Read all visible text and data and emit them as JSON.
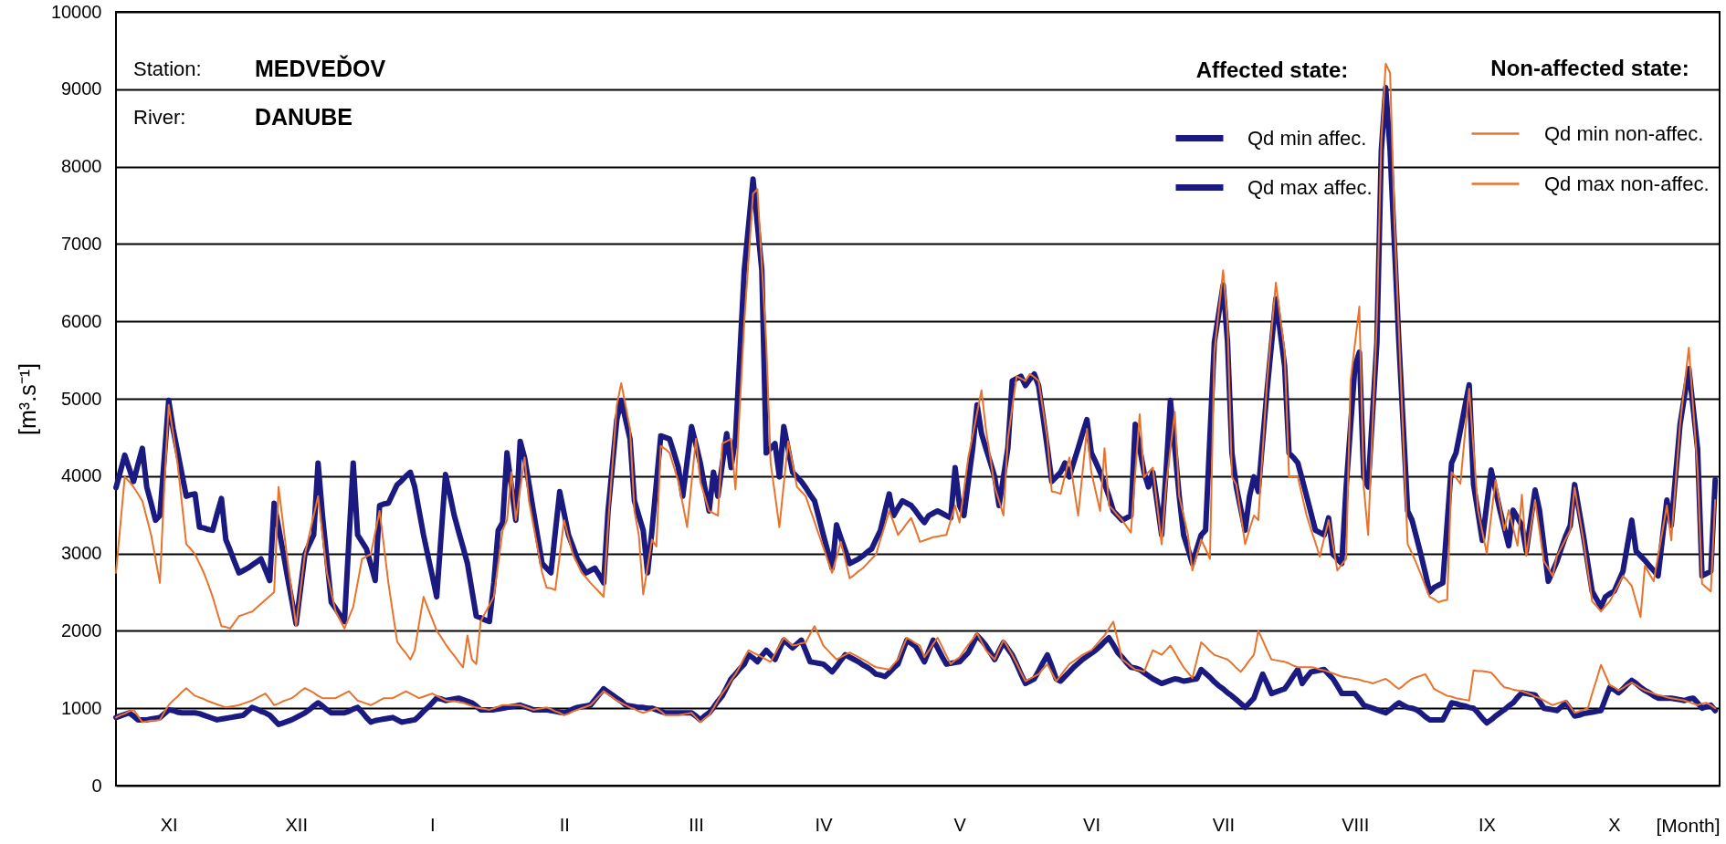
{
  "chart_data": {
    "type": "line",
    "annotations": [
      "Station:",
      "MEDVEĎOV",
      "River:",
      "DANUBE",
      "Non-affected state:"
    ],
    "xlabel": "[Month]",
    "ylabel": "[m³.s⁻¹]",
    "legend_title": "Affected state:",
    "categories": [
      null,
      null,
      null,
      null,
      null,
      null,
      null,
      null,
      null,
      null,
      null,
      null,
      "XI",
      null,
      null,
      null,
      null,
      null,
      null,
      null,
      null,
      null,
      null,
      null,
      null,
      null,
      null,
      null,
      null,
      null,
      null,
      null,
      null,
      null,
      null,
      null,
      null,
      null,
      null,
      null,
      null,
      "XII",
      null,
      null,
      null,
      null,
      null,
      null,
      null,
      null,
      null,
      null,
      null,
      null,
      null,
      null,
      null,
      null,
      null,
      null,
      null,
      null,
      null,
      null,
      null,
      null,
      null,
      null,
      null,
      null,
      null,
      null,
      "I",
      null,
      null,
      null,
      null,
      null,
      null,
      null,
      null,
      null,
      null,
      null,
      null,
      null,
      null,
      null,
      null,
      null,
      null,
      null,
      null,
      null,
      null,
      null,
      null,
      null,
      null,
      null,
      null,
      null,
      "II",
      null,
      null,
      null,
      null,
      null,
      null,
      null,
      null,
      null,
      null,
      null,
      null,
      null,
      null,
      null,
      null,
      null,
      null,
      null,
      null,
      null,
      null,
      null,
      null,
      null,
      null,
      null,
      null,
      null,
      "III",
      null,
      null,
      null,
      null,
      null,
      null,
      null,
      null,
      null,
      null,
      null,
      null,
      null,
      null,
      null,
      null,
      null,
      null,
      null,
      null,
      null,
      null,
      null,
      null,
      null,
      null,
      null,
      null,
      "IV",
      null,
      null,
      null,
      null,
      null,
      null,
      null,
      null,
      null,
      null,
      null,
      null,
      null,
      null,
      null,
      null,
      null,
      null,
      null,
      null,
      null,
      null,
      null,
      null,
      null,
      null,
      null,
      null,
      null,
      null,
      "V",
      null,
      null,
      null,
      null,
      null,
      null,
      null,
      null,
      null,
      null,
      null,
      null,
      null,
      null,
      null,
      null,
      null,
      null,
      null,
      null,
      null,
      null,
      null,
      null,
      null,
      null,
      null,
      null,
      null,
      "VI",
      null,
      null,
      null,
      null,
      null,
      null,
      null,
      null,
      null,
      null,
      null,
      null,
      null,
      null,
      null,
      null,
      null,
      null,
      null,
      null,
      null,
      null,
      null,
      null,
      null,
      null,
      null,
      null,
      null,
      "VII",
      null,
      null,
      null,
      null,
      null,
      null,
      null,
      null,
      null,
      null,
      null,
      null,
      null,
      null,
      null,
      null,
      null,
      null,
      null,
      null,
      null,
      null,
      null,
      null,
      null,
      null,
      null,
      null,
      null,
      "VIII",
      null,
      null,
      null,
      null,
      null,
      null,
      null,
      null,
      null,
      null,
      null,
      null,
      null,
      null,
      null,
      null,
      null,
      null,
      null,
      null,
      null,
      null,
      null,
      null,
      null,
      null,
      null,
      null,
      null,
      "IX",
      null,
      null,
      null,
      null,
      null,
      null,
      null,
      null,
      null,
      null,
      null,
      null,
      null,
      null,
      null,
      null,
      null,
      null,
      null,
      null,
      null,
      null,
      null,
      null,
      null,
      null,
      null,
      null,
      "X",
      null,
      null,
      null,
      null,
      null,
      null,
      null,
      null,
      null,
      null,
      null,
      null,
      null,
      null,
      null,
      null,
      null,
      null,
      null,
      null,
      null,
      null,
      null
    ],
    "ylim": [
      0,
      10000
    ],
    "yticks": [
      0,
      1000,
      2000,
      3000,
      4000,
      5000,
      6000,
      7000,
      8000,
      9000,
      10000
    ],
    "grid": "y",
    "legend": "top right",
    "series": [
      {
        "name": "Qd min affec.",
        "color": "#1a1a80",
        "values": [
          880,
          900,
          920,
          940,
          900,
          850,
          850,
          850,
          860,
          870,
          880,
          930,
          980,
          970,
          950,
          940,
          940,
          940,
          940,
          930,
          910,
          890,
          870,
          850,
          860,
          870,
          880,
          890,
          900,
          910,
          960,
          1010,
          990,
          960,
          940,
          910,
          850,
          790,
          810,
          830,
          850,
          880,
          910,
          940,
          980,
          1030,
          1070,
          1030,
          980,
          940,
          940,
          940,
          940,
          960,
          990,
          1010,
          950,
          880,
          820,
          840,
          850,
          860,
          870,
          880,
          850,
          820,
          830,
          840,
          850,
          900,
          960,
          1010,
          1070,
          1130,
          1120,
          1100,
          1110,
          1120,
          1130,
          1110,
          1090,
          1070,
          1030,
          980,
          980,
          980,
          980,
          990,
          1000,
          1010,
          1020,
          1030,
          1040,
          1020,
          1000,
          980,
          980,
          980,
          980,
          970,
          960,
          950,
          940,
          960,
          990,
          1010,
          1020,
          1030,
          1040,
          1110,
          1180,
          1250,
          1210,
          1170,
          1130,
          1090,
          1040,
          1030,
          1020,
          1010,
          1010,
          1000,
          1000,
          980,
          960,
          940,
          940,
          940,
          940,
          940,
          940,
          940,
          900,
          850,
          900,
          940,
          1010,
          1090,
          1160,
          1270,
          1380,
          1440,
          1510,
          1570,
          1690,
          1650,
          1600,
          1680,
          1750,
          1690,
          1630,
          1760,
          1880,
          1830,
          1780,
          1830,
          1880,
          1740,
          1600,
          1590,
          1580,
          1570,
          1520,
          1470,
          1540,
          1620,
          1690,
          1660,
          1630,
          1600,
          1560,
          1530,
          1490,
          1440,
          1430,
          1410,
          1460,
          1520,
          1570,
          1730,
          1880,
          1840,
          1800,
          1700,
          1600,
          1740,
          1880,
          1780,
          1670,
          1570,
          1580,
          1590,
          1600,
          1660,
          1720,
          1830,
          1940,
          1880,
          1810,
          1720,
          1630,
          1740,
          1850,
          1770,
          1690,
          1570,
          1440,
          1320,
          1350,
          1380,
          1480,
          1590,
          1690,
          1540,
          1380,
          1350,
          1410,
          1470,
          1530,
          1580,
          1630,
          1670,
          1710,
          1750,
          1800,
          1860,
          1910,
          1820,
          1720,
          1660,
          1590,
          1530,
          1520,
          1500,
          1460,
          1420,
          1380,
          1350,
          1320,
          1340,
          1360,
          1380,
          1370,
          1350,
          1360,
          1370,
          1380,
          1500,
          1450,
          1400,
          1340,
          1290,
          1250,
          1200,
          1160,
          1110,
          1060,
          1010,
          1070,
          1130,
          1290,
          1440,
          1320,
          1190,
          1210,
          1230,
          1250,
          1330,
          1420,
          1500,
          1320,
          1400,
          1470,
          1480,
          1490,
          1500,
          1440,
          1380,
          1290,
          1190,
          1190,
          1190,
          1190,
          1120,
          1040,
          1020,
          1000,
          980,
          960,
          940,
          980,
          1030,
          1070,
          1040,
          1010,
          1000,
          980,
          940,
          890,
          850,
          850,
          850,
          850,
          960,
          1070,
          1060,
          1040,
          1030,
          1010,
          1000,
          940,
          870,
          810,
          850,
          900,
          940,
          980,
          1030,
          1070,
          1140,
          1200,
          1190,
          1180,
          1170,
          1090,
          1000,
          990,
          980,
          970,
          1020,
          1070,
          990,
          900,
          910,
          930,
          940,
          950,
          960,
          970,
          1120,
          1270,
          1240,
          1200,
          1250,
          1310,
          1360,
          1320,
          1270,
          1230,
          1200,
          1160,
          1130,
          1130,
          1130,
          1130,
          1120,
          1110,
          1100,
          1120,
          1130,
          1070,
          1000,
          1020,
          1040,
          970
        ]
      },
      {
        "name": "Qd max affec.",
        "color": "#1a1a80",
        "values": [
          3850,
          4060,
          4270,
          4100,
          3930,
          4150,
          4360,
          3860,
          3650,
          3430,
          3490,
          4240,
          4980,
          4610,
          4320,
          4030,
          3740,
          3760,
          3770,
          3340,
          3330,
          3310,
          3300,
          3510,
          3710,
          3180,
          3040,
          2890,
          2750,
          2780,
          2810,
          2850,
          2890,
          2930,
          2790,
          2650,
          3650,
          3340,
          3030,
          2710,
          2400,
          2090,
          2540,
          2990,
          3120,
          3240,
          4170,
          3490,
          2930,
          2370,
          2290,
          2200,
          2120,
          3150,
          4170,
          3240,
          3150,
          3060,
          2860,
          2650,
          3620,
          3640,
          3650,
          3770,
          3890,
          3940,
          4000,
          4050,
          3860,
          3550,
          3240,
          2970,
          2710,
          2440,
          3230,
          4020,
          3760,
          3490,
          3280,
          3080,
          2870,
          2530,
          2190,
          2170,
          2140,
          2120,
          2620,
          3300,
          3400,
          4300,
          3870,
          3430,
          4450,
          4240,
          3900,
          3550,
          3210,
          2870,
          2810,
          2750,
          3280,
          3800,
          3520,
          3240,
          3090,
          2930,
          2840,
          2750,
          2780,
          2810,
          2720,
          2620,
          3550,
          4140,
          4730,
          4980,
          4730,
          4480,
          3680,
          3490,
          3300,
          2750,
          3300,
          3910,
          4520,
          4500,
          4480,
          4300,
          4110,
          3740,
          4190,
          4640,
          4410,
          4170,
          3860,
          3550,
          4050,
          3740,
          4150,
          4550,
          4110,
          4480,
          5570,
          6660,
          7250,
          7840,
          7250,
          6660,
          4300,
          4360,
          4420,
          3990,
          4640,
          4350,
          4050,
          3990,
          3930,
          3850,
          3760,
          3680,
          3460,
          3240,
          3030,
          2810,
          3370,
          3200,
          3040,
          2870,
          2900,
          2930,
          2970,
          3020,
          3060,
          3180,
          3300,
          3540,
          3770,
          3490,
          3590,
          3680,
          3650,
          3620,
          3550,
          3470,
          3400,
          3490,
          3520,
          3550,
          3520,
          3490,
          3460,
          4110,
          3620,
          3490,
          3930,
          4360,
          4920,
          4550,
          4360,
          4180,
          3990,
          3620,
          3990,
          4360,
          5230,
          5260,
          5290,
          5170,
          5250,
          5320,
          5170,
          4770,
          4360,
          3930,
          3990,
          4050,
          4170,
          3990,
          4180,
          4360,
          4550,
          4730,
          4300,
          4180,
          4050,
          3900,
          3740,
          3550,
          3490,
          3430,
          3460,
          3490,
          4670,
          4360,
          4050,
          3860,
          4050,
          3650,
          3240,
          4050,
          4980,
          4360,
          3740,
          3240,
          3060,
          2870,
          3060,
          3240,
          3300,
          4520,
          5730,
          6100,
          6470,
          5730,
          4300,
          3860,
          3580,
          3300,
          3740,
          3990,
          3800,
          4460,
          5110,
          5700,
          6290,
          5860,
          5420,
          4300,
          4240,
          4170,
          3960,
          3740,
          3520,
          3300,
          3270,
          3240,
          3460,
          2990,
          2930,
          2870,
          3860,
          4640,
          5420,
          5600,
          3990,
          3860,
          4800,
          5730,
          8210,
          9020,
          8210,
          6970,
          5730,
          4640,
          3550,
          3430,
          3210,
          2990,
          2750,
          2500,
          2560,
          2590,
          2620,
          3400,
          4170,
          4300,
          4590,
          4890,
          5180,
          3890,
          3530,
          3170,
          3630,
          4080,
          3820,
          3560,
          3330,
          3100,
          3560,
          3460,
          3360,
          3030,
          3430,
          3820,
          3560,
          3100,
          2640,
          2770,
          2900,
          3070,
          3230,
          3360,
          3890,
          3560,
          3230,
          2870,
          2510,
          2410,
          2310,
          2440,
          2480,
          2510,
          2640,
          2770,
          3100,
          3430,
          3030,
          2970,
          2910,
          2840,
          2780,
          2710,
          3200,
          3690,
          3360,
          4020,
          4670,
          5030,
          5390,
          4870,
          4350,
          2710,
          2740,
          2770,
          3950
        ]
      },
      {
        "name": "Qd min non-affec.",
        "color": "#e8732c",
        "values": [
          880,
          910,
          930,
          960,
          980,
          900,
          820,
          830,
          840,
          840,
          850,
          950,
          1040,
          1100,
          1150,
          1210,
          1260,
          1210,
          1160,
          1140,
          1120,
          1090,
          1070,
          1050,
          1030,
          1010,
          1020,
          1030,
          1040,
          1060,
          1080,
          1100,
          1130,
          1160,
          1190,
          1120,
          1040,
          1060,
          1090,
          1110,
          1130,
          1170,
          1220,
          1260,
          1230,
          1200,
          1160,
          1130,
          1130,
          1130,
          1130,
          1160,
          1190,
          1220,
          1160,
          1100,
          1080,
          1060,
          1040,
          1070,
          1100,
          1130,
          1130,
          1130,
          1160,
          1190,
          1220,
          1190,
          1160,
          1130,
          1150,
          1170,
          1190,
          1160,
          1130,
          1100,
          1090,
          1090,
          1080,
          1070,
          1050,
          1030,
          1010,
          1000,
          990,
          980,
          1000,
          1020,
          1040,
          1040,
          1040,
          1040,
          1040,
          1020,
          1000,
          980,
          990,
          1000,
          1010,
          990,
          960,
          940,
          910,
          930,
          960,
          980,
          1000,
          1020,
          1040,
          1100,
          1160,
          1220,
          1180,
          1140,
          1100,
          1070,
          1040,
          1010,
          990,
          960,
          940,
          960,
          980,
          1000,
          960,
          910,
          910,
          910,
          910,
          920,
          930,
          940,
          880,
          820,
          870,
          910,
          1000,
          1100,
          1190,
          1270,
          1360,
          1440,
          1540,
          1650,
          1750,
          1720,
          1690,
          1660,
          1630,
          1600,
          1700,
          1810,
          1910,
          1860,
          1810,
          1820,
          1840,
          1850,
          1960,
          2060,
          1940,
          1810,
          1750,
          1690,
          1630,
          1660,
          1690,
          1720,
          1690,
          1660,
          1630,
          1600,
          1560,
          1530,
          1520,
          1510,
          1500,
          1570,
          1630,
          1770,
          1910,
          1880,
          1840,
          1810,
          1660,
          1740,
          1830,
          1910,
          1800,
          1680,
          1570,
          1620,
          1660,
          1740,
          1820,
          1890,
          1970,
          1860,
          1750,
          1690,
          1630,
          1760,
          1880,
          1790,
          1690,
          1580,
          1460,
          1350,
          1380,
          1410,
          1440,
          1510,
          1570,
          1460,
          1350,
          1420,
          1500,
          1570,
          1610,
          1650,
          1690,
          1720,
          1750,
          1810,
          1880,
          1940,
          2030,
          2120,
          1880,
          1630,
          1590,
          1540,
          1500,
          1490,
          1470,
          1610,
          1750,
          1720,
          1690,
          1750,
          1810,
          1720,
          1620,
          1530,
          1460,
          1390,
          1620,
          1850,
          1800,
          1740,
          1690,
          1670,
          1650,
          1630,
          1580,
          1520,
          1470,
          1540,
          1620,
          1690,
          2000,
          1880,
          1750,
          1630,
          1620,
          1610,
          1600,
          1580,
          1550,
          1530,
          1530,
          1530,
          1530,
          1520,
          1500,
          1490,
          1470,
          1450,
          1430,
          1410,
          1400,
          1390,
          1380,
          1370,
          1350,
          1340,
          1320,
          1340,
          1360,
          1380,
          1340,
          1290,
          1250,
          1290,
          1340,
          1380,
          1400,
          1420,
          1440,
          1350,
          1250,
          1220,
          1190,
          1160,
          1150,
          1130,
          1120,
          1110,
          1100,
          1490,
          1480,
          1480,
          1470,
          1460,
          1400,
          1330,
          1270,
          1260,
          1240,
          1230,
          1220,
          1200,
          1180,
          1150,
          1130,
          1100,
          1070,
          1040,
          1060,
          1080,
          1100,
          1020,
          940,
          960,
          980,
          1000,
          1190,
          1370,
          1560,
          1430,
          1300,
          1270,
          1230,
          1260,
          1300,
          1330,
          1300,
          1260,
          1230,
          1210,
          1190,
          1170,
          1160,
          1140,
          1130,
          1120,
          1110,
          1100,
          1080,
          1060,
          1040,
          1060,
          1070,
          1040,
          1000
        ]
      },
      {
        "name": "Qd max non-affec.",
        "color": "#e8732c",
        "values": [
          2750,
          3370,
          3990,
          3930,
          3860,
          3770,
          3680,
          3460,
          3240,
          2930,
          2620,
          3860,
          4920,
          4550,
          4170,
          3650,
          3120,
          3060,
          2990,
          2870,
          2750,
          2600,
          2440,
          2250,
          2060,
          2050,
          2030,
          2110,
          2190,
          2210,
          2230,
          2250,
          2300,
          2350,
          2400,
          2450,
          2500,
          3860,
          3400,
          2930,
          2500,
          2060,
          2530,
          2990,
          3240,
          3490,
          3740,
          3250,
          2750,
          2500,
          2250,
          2140,
          2030,
          2170,
          2310,
          2620,
          2930,
          2960,
          2990,
          3270,
          3550,
          3090,
          2620,
          2240,
          1860,
          1780,
          1710,
          1630,
          1750,
          2100,
          2440,
          2290,
          2150,
          2000,
          1920,
          1830,
          1750,
          1680,
          1600,
          1530,
          1940,
          1630,
          1570,
          2120,
          2230,
          2330,
          2440,
          2870,
          3300,
          3430,
          4050,
          3430,
          3840,
          4240,
          3680,
          3370,
          3060,
          2750,
          2560,
          2550,
          2530,
          2980,
          3430,
          3210,
          2990,
          2870,
          2750,
          2690,
          2620,
          2560,
          2500,
          2440,
          3370,
          4150,
          4920,
          5200,
          4910,
          4610,
          3550,
          3240,
          2470,
          2830,
          3180,
          3090,
          4390,
          4350,
          4300,
          4120,
          3930,
          3640,
          3340,
          3910,
          4480,
          3930,
          3740,
          3550,
          3520,
          3490,
          4420,
          4450,
          4480,
          3830,
          4910,
          5980,
          6820,
          7650,
          7710,
          6720,
          5730,
          4170,
          3760,
          3340,
          3900,
          4450,
          4160,
          3860,
          3800,
          3740,
          3570,
          3410,
          3240,
          3080,
          2910,
          2750,
          2950,
          3150,
          2920,
          2680,
          2720,
          2770,
          2810,
          2870,
          2930,
          2990,
          3180,
          3360,
          3550,
          3400,
          3240,
          3310,
          3390,
          3460,
          3310,
          3150,
          3170,
          3190,
          3210,
          3220,
          3230,
          3240,
          3430,
          3620,
          3400,
          3820,
          4240,
          4530,
          4820,
          5110,
          4610,
          4240,
          3860,
          3680,
          3490,
          4480,
          4890,
          5290,
          5260,
          5230,
          5320,
          5280,
          5230,
          4860,
          4480,
          3800,
          3790,
          3770,
          4010,
          4240,
          3870,
          3490,
          4050,
          4610,
          4050,
          3800,
          3550,
          4360,
          3620,
          3560,
          3490,
          3430,
          3350,
          3270,
          4040,
          4800,
          3990,
          4050,
          4110,
          3620,
          3120,
          3860,
          4350,
          4830,
          3740,
          3490,
          3240,
          2780,
          2980,
          3180,
          3060,
          2930,
          5600,
          6130,
          6660,
          5980,
          3990,
          3890,
          3510,
          3120,
          3310,
          3490,
          3430,
          4330,
          5230,
          5870,
          6500,
          6050,
          5600,
          3990,
          3990,
          3990,
          3740,
          3490,
          3310,
          3140,
          2960,
          3200,
          3430,
          3110,
          2780,
          2860,
          2930,
          5230,
          5710,
          6190,
          3860,
          3240,
          4640,
          6040,
          8340,
          9330,
          9210,
          7280,
          5880,
          4480,
          3120,
          3000,
          2870,
          2730,
          2580,
          2440,
          2410,
          2370,
          2390,
          2400,
          4050,
          3980,
          3900,
          4520,
          5130,
          4350,
          3560,
          3280,
          3000,
          3480,
          3950,
          3630,
          3300,
          3560,
          3330,
          3100,
          3760,
          2970,
          3330,
          3690,
          3300,
          2900,
          2810,
          2710,
          2970,
          3080,
          3190,
          3300,
          3850,
          3510,
          3170,
          2780,
          2380,
          2320,
          2250,
          2320,
          2380,
          2490,
          2600,
          2710,
          2650,
          2580,
          2380,
          2180,
          2840,
          2740,
          2640,
          2970,
          3290,
          3620,
          3170,
          3920,
          4670,
          5170,
          5660,
          4870,
          4080,
          2610,
          2560,
          2510,
          3690
        ]
      }
    ]
  }
}
